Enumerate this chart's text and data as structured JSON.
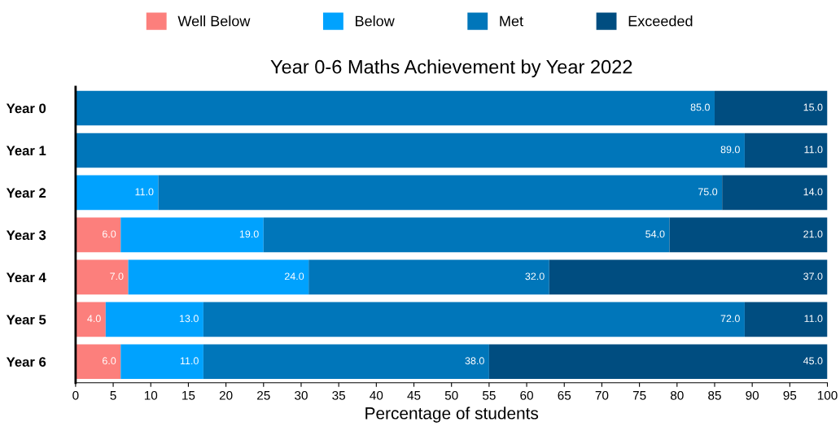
{
  "chart_data": {
    "type": "bar",
    "orientation": "horizontal",
    "stacked": true,
    "title": "Year 0-6 Maths Achievement by Year 2022",
    "xlabel": "Percentage of students",
    "categories": [
      "Year 0",
      "Year 1",
      "Year 2",
      "Year 3",
      "Year 4",
      "Year 5",
      "Year 6"
    ],
    "series": [
      {
        "name": "Well Below",
        "color": "#fc7f7c",
        "values": [
          0,
          0,
          0,
          6,
          7,
          4,
          6
        ],
        "value_labels": [
          null,
          null,
          null,
          "6.0",
          "7.0",
          "4.0",
          "6.0"
        ]
      },
      {
        "name": "Below",
        "color": "#00a2fe",
        "values": [
          0,
          0,
          11,
          19,
          24,
          13,
          11
        ],
        "value_labels": [
          null,
          null,
          "11.0",
          "19.0",
          "24.0",
          "13.0",
          "11.0"
        ]
      },
      {
        "name": "Met",
        "color": "#0076ba",
        "values": [
          85,
          89,
          75,
          54,
          32,
          72,
          38
        ],
        "value_labels": [
          "85.0",
          "89.0",
          "75.0",
          "54.0",
          "32.0",
          "72.0",
          "38.0"
        ]
      },
      {
        "name": "Exceeded",
        "color": "#004d80",
        "values": [
          15,
          11,
          14,
          21,
          37,
          11,
          45
        ],
        "value_labels": [
          "15.0",
          "11.0",
          "14.0",
          "21.0",
          "37.0",
          "11.0",
          "45.0"
        ]
      }
    ],
    "xlim": [
      0,
      100
    ],
    "xticks": [
      0,
      5,
      10,
      15,
      20,
      25,
      30,
      35,
      40,
      45,
      50,
      55,
      60,
      65,
      70,
      75,
      80,
      85,
      90,
      95,
      100
    ],
    "grid": false,
    "legend": "top"
  }
}
